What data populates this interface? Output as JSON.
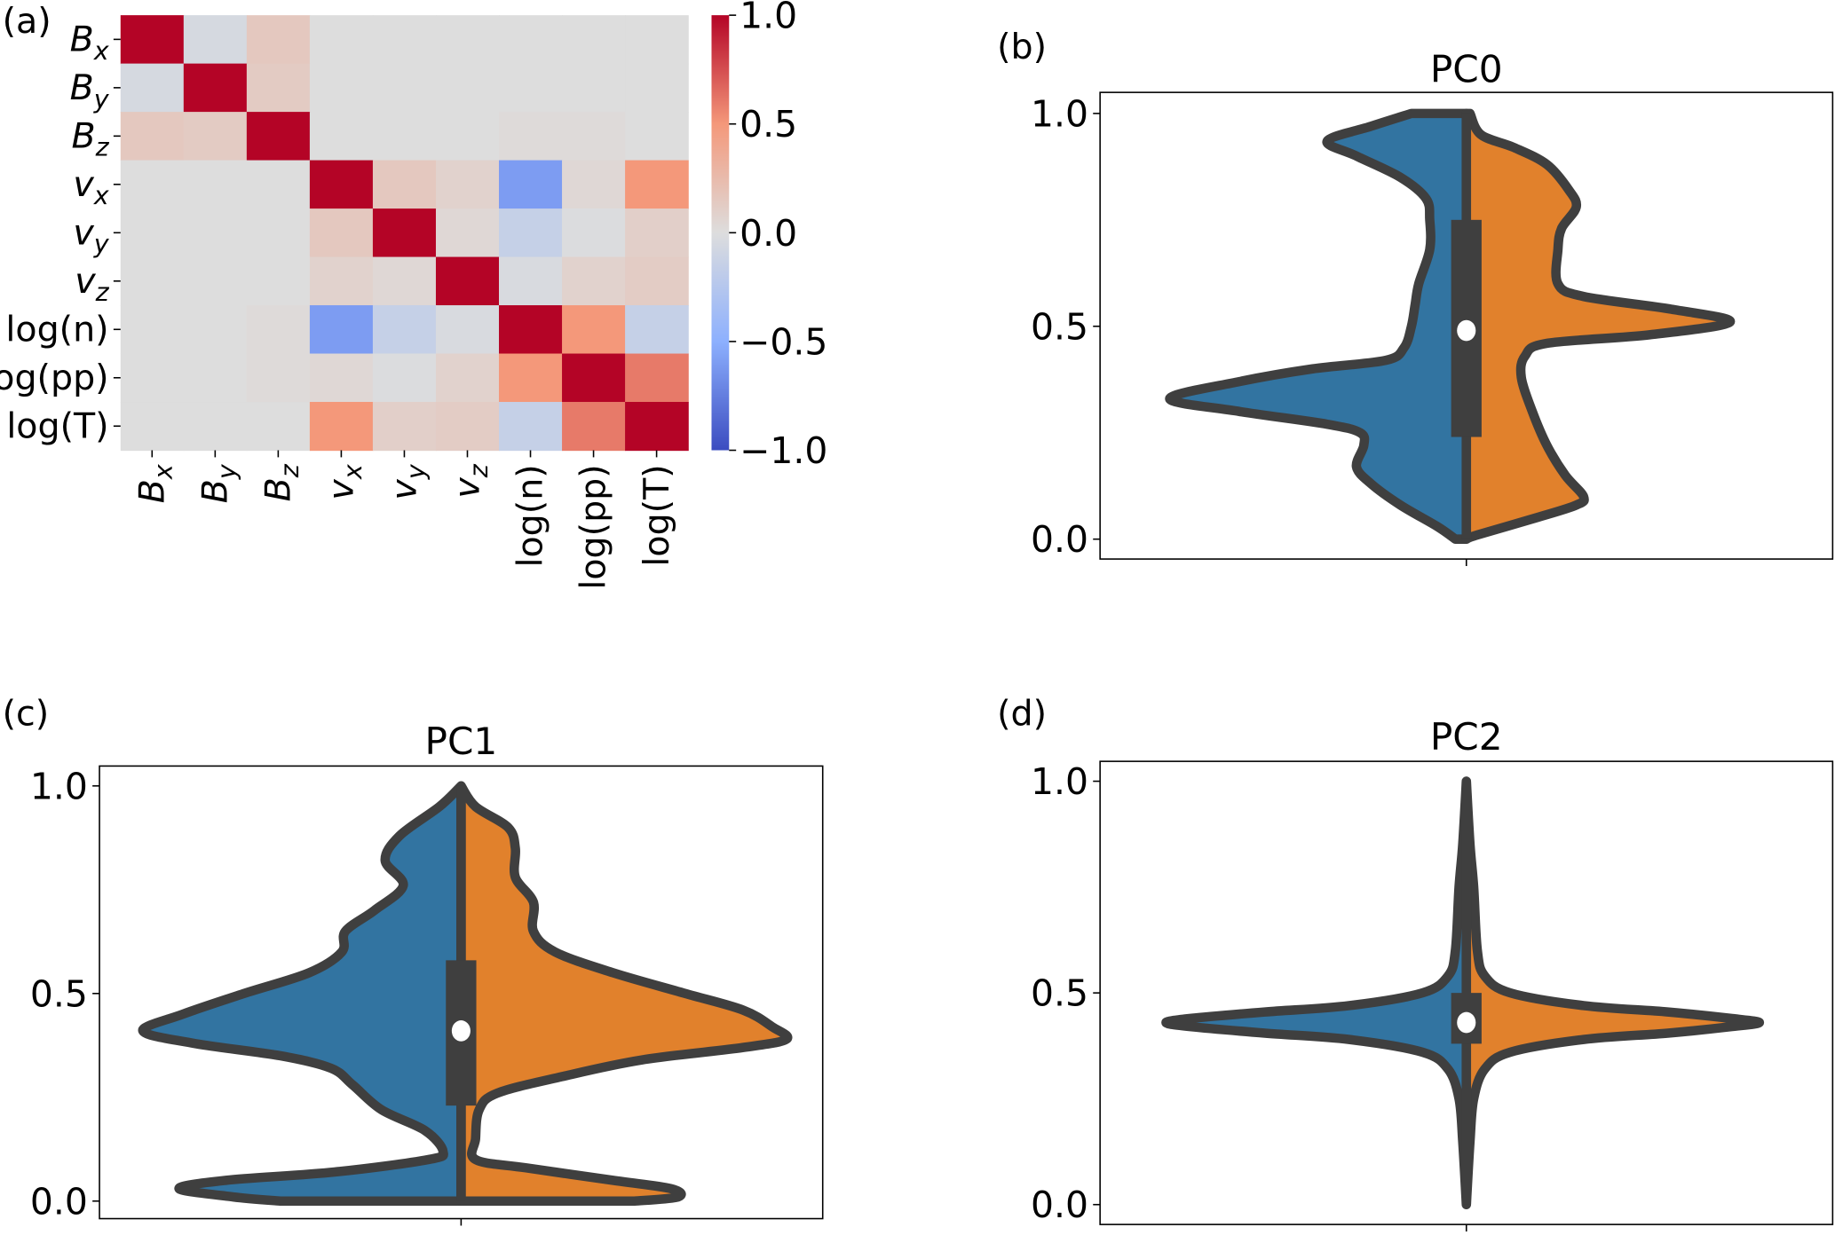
{
  "chart_data": [
    {
      "panel": "(a)",
      "type": "heatmap",
      "title": "",
      "row_labels": [
        "B_x",
        "B_y",
        "B_z",
        "v_x",
        "v_y",
        "v_z",
        "log(n)",
        "log(pp)",
        "log(T)"
      ],
      "col_labels": [
        "B_x",
        "B_y",
        "B_z",
        "v_x",
        "v_y",
        "v_z",
        "log(n)",
        "log(pp)",
        "log(T)"
      ],
      "values": [
        [
          1.0,
          -0.05,
          0.15,
          0.0,
          0.0,
          0.0,
          0.0,
          0.0,
          0.0
        ],
        [
          -0.05,
          1.0,
          0.13,
          0.0,
          0.0,
          0.0,
          0.0,
          0.0,
          0.0
        ],
        [
          0.15,
          0.13,
          1.0,
          0.0,
          0.0,
          0.0,
          0.02,
          0.02,
          0.0
        ],
        [
          0.0,
          0.0,
          0.0,
          1.0,
          0.15,
          0.08,
          -0.6,
          0.04,
          0.5
        ],
        [
          0.0,
          0.0,
          0.0,
          0.15,
          1.0,
          0.04,
          -0.15,
          -0.01,
          0.1
        ],
        [
          0.0,
          0.0,
          0.0,
          0.08,
          0.04,
          1.0,
          -0.03,
          0.08,
          0.12
        ],
        [
          0.0,
          0.0,
          0.02,
          -0.6,
          -0.15,
          -0.03,
          1.0,
          0.5,
          -0.15
        ],
        [
          0.0,
          0.0,
          0.02,
          0.04,
          -0.01,
          0.08,
          0.5,
          1.0,
          0.6
        ],
        [
          0.0,
          0.0,
          0.0,
          0.5,
          0.1,
          0.12,
          -0.15,
          0.6,
          1.0
        ]
      ],
      "colormap": "coolwarm",
      "colorbar": {
        "range": [
          -1.0,
          1.0
        ],
        "ticks": [
          "1.0",
          "0.5",
          "0.0",
          "−0.5",
          "−1.0"
        ],
        "tick_values": [
          1.0,
          0.5,
          0.0,
          -0.5,
          -1.0
        ]
      }
    },
    {
      "panel": "(b)",
      "type": "violin",
      "title": "PC0",
      "ylim": [
        0.0,
        1.0
      ],
      "yticks": [
        "0.0",
        "0.5",
        "1.0"
      ],
      "ytick_values": [
        0.0,
        0.5,
        1.0
      ],
      "split": true,
      "colors": {
        "left": "#3274a1",
        "right": "#e1812c",
        "edge": "#3f3f3f"
      },
      "box": {
        "q1": 0.24,
        "q3": 0.75,
        "median": 0.49
      },
      "left_density": [
        [
          1.0,
          0.15
        ],
        [
          0.97,
          0.26
        ],
        [
          0.935,
          0.38
        ],
        [
          0.9,
          0.3
        ],
        [
          0.85,
          0.18
        ],
        [
          0.8,
          0.11
        ],
        [
          0.75,
          0.1
        ],
        [
          0.68,
          0.1
        ],
        [
          0.6,
          0.13
        ],
        [
          0.55,
          0.14
        ],
        [
          0.5,
          0.15
        ],
        [
          0.45,
          0.17
        ],
        [
          0.42,
          0.22
        ],
        [
          0.4,
          0.42
        ],
        [
          0.37,
          0.62
        ],
        [
          0.33,
          0.81
        ],
        [
          0.3,
          0.62
        ],
        [
          0.27,
          0.38
        ],
        [
          0.25,
          0.29
        ],
        [
          0.22,
          0.28
        ],
        [
          0.17,
          0.3
        ],
        [
          0.13,
          0.26
        ],
        [
          0.08,
          0.18
        ],
        [
          0.03,
          0.08
        ],
        [
          0.0,
          0.03
        ]
      ],
      "right_density": [
        [
          1.0,
          0.01
        ],
        [
          0.95,
          0.04
        ],
        [
          0.92,
          0.13
        ],
        [
          0.88,
          0.22
        ],
        [
          0.82,
          0.28
        ],
        [
          0.78,
          0.3
        ],
        [
          0.73,
          0.26
        ],
        [
          0.68,
          0.25
        ],
        [
          0.6,
          0.25
        ],
        [
          0.57,
          0.32
        ],
        [
          0.54,
          0.56
        ],
        [
          0.51,
          0.72
        ],
        [
          0.48,
          0.5
        ],
        [
          0.46,
          0.22
        ],
        [
          0.43,
          0.16
        ],
        [
          0.38,
          0.15
        ],
        [
          0.3,
          0.18
        ],
        [
          0.22,
          0.22
        ],
        [
          0.15,
          0.27
        ],
        [
          0.1,
          0.32
        ],
        [
          0.08,
          0.3
        ],
        [
          0.05,
          0.19
        ],
        [
          0.01,
          0.03
        ],
        [
          0.0,
          0.0
        ]
      ]
    },
    {
      "panel": "(c)",
      "type": "violin",
      "title": "PC1",
      "ylim": [
        0.0,
        1.0
      ],
      "yticks": [
        "0.0",
        "0.5",
        "1.0"
      ],
      "ytick_values": [
        0.0,
        0.5,
        1.0
      ],
      "split": true,
      "colors": {
        "left": "#3274a1",
        "right": "#e1812c",
        "edge": "#3f3f3f"
      },
      "box": {
        "q1": 0.23,
        "q3": 0.58,
        "median": 0.41
      },
      "left_density": [
        [
          1.0,
          0.0
        ],
        [
          0.95,
          0.06
        ],
        [
          0.88,
          0.17
        ],
        [
          0.82,
          0.21
        ],
        [
          0.76,
          0.16
        ],
        [
          0.7,
          0.24
        ],
        [
          0.65,
          0.32
        ],
        [
          0.6,
          0.33
        ],
        [
          0.55,
          0.42
        ],
        [
          0.5,
          0.6
        ],
        [
          0.45,
          0.77
        ],
        [
          0.41,
          0.88
        ],
        [
          0.38,
          0.74
        ],
        [
          0.35,
          0.5
        ],
        [
          0.32,
          0.36
        ],
        [
          0.28,
          0.3
        ],
        [
          0.22,
          0.22
        ],
        [
          0.17,
          0.1
        ],
        [
          0.12,
          0.05
        ],
        [
          0.1,
          0.09
        ],
        [
          0.07,
          0.35
        ],
        [
          0.05,
          0.65
        ],
        [
          0.03,
          0.78
        ],
        [
          0.01,
          0.63
        ],
        [
          0.0,
          0.5
        ]
      ],
      "right_density": [
        [
          1.0,
          0.0
        ],
        [
          0.95,
          0.04
        ],
        [
          0.9,
          0.13
        ],
        [
          0.85,
          0.15
        ],
        [
          0.78,
          0.15
        ],
        [
          0.72,
          0.2
        ],
        [
          0.65,
          0.2
        ],
        [
          0.6,
          0.26
        ],
        [
          0.55,
          0.42
        ],
        [
          0.5,
          0.62
        ],
        [
          0.46,
          0.78
        ],
        [
          0.42,
          0.86
        ],
        [
          0.39,
          0.9
        ],
        [
          0.37,
          0.78
        ],
        [
          0.34,
          0.5
        ],
        [
          0.3,
          0.28
        ],
        [
          0.26,
          0.1
        ],
        [
          0.22,
          0.05
        ],
        [
          0.15,
          0.04
        ],
        [
          0.1,
          0.04
        ],
        [
          0.08,
          0.18
        ],
        [
          0.05,
          0.42
        ],
        [
          0.03,
          0.58
        ],
        [
          0.01,
          0.6
        ],
        [
          0.0,
          0.48
        ]
      ]
    },
    {
      "panel": "(d)",
      "type": "violin",
      "title": "PC2",
      "ylim": [
        0.0,
        1.0
      ],
      "yticks": [
        "0.0",
        "0.5",
        "1.0"
      ],
      "ytick_values": [
        0.0,
        0.5,
        1.0
      ],
      "split": true,
      "colors": {
        "left": "#3274a1",
        "right": "#e1812c",
        "edge": "#3f3f3f"
      },
      "box": {
        "q1": 0.38,
        "q3": 0.5,
        "median": 0.43
      },
      "left_density": [
        [
          1.0,
          0.0
        ],
        [
          0.85,
          0.01
        ],
        [
          0.75,
          0.02
        ],
        [
          0.6,
          0.03
        ],
        [
          0.54,
          0.05
        ],
        [
          0.5,
          0.12
        ],
        [
          0.47,
          0.32
        ],
        [
          0.455,
          0.55
        ],
        [
          0.44,
          0.75
        ],
        [
          0.43,
          0.82
        ],
        [
          0.42,
          0.75
        ],
        [
          0.405,
          0.55
        ],
        [
          0.39,
          0.32
        ],
        [
          0.36,
          0.12
        ],
        [
          0.32,
          0.05
        ],
        [
          0.25,
          0.02
        ],
        [
          0.15,
          0.01
        ],
        [
          0.0,
          0.0
        ]
      ],
      "right_density": [
        [
          1.0,
          0.0
        ],
        [
          0.85,
          0.01
        ],
        [
          0.75,
          0.02
        ],
        [
          0.6,
          0.03
        ],
        [
          0.54,
          0.05
        ],
        [
          0.5,
          0.12
        ],
        [
          0.47,
          0.32
        ],
        [
          0.455,
          0.55
        ],
        [
          0.44,
          0.72
        ],
        [
          0.43,
          0.8
        ],
        [
          0.42,
          0.72
        ],
        [
          0.405,
          0.55
        ],
        [
          0.39,
          0.32
        ],
        [
          0.36,
          0.12
        ],
        [
          0.32,
          0.05
        ],
        [
          0.25,
          0.02
        ],
        [
          0.15,
          0.01
        ],
        [
          0.0,
          0.0
        ]
      ]
    }
  ]
}
